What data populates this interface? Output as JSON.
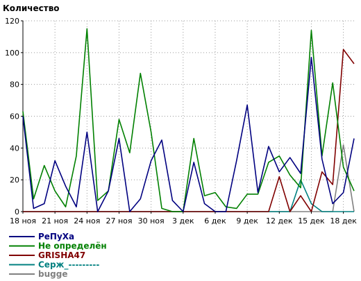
{
  "chart_data": {
    "type": "line",
    "title": "",
    "ylabel": "Количество",
    "xlabel": "",
    "ylim": [
      0,
      120
    ],
    "yticks": [
      0,
      20,
      40,
      60,
      80,
      100,
      120
    ],
    "xlim": [
      0,
      31
    ],
    "xticks": [
      {
        "x": 0,
        "label": "18 ноя"
      },
      {
        "x": 3,
        "label": "21 ноя"
      },
      {
        "x": 6,
        "label": "24 ноя"
      },
      {
        "x": 9,
        "label": "27 ноя"
      },
      {
        "x": 12,
        "label": "30 ноя"
      },
      {
        "x": 15,
        "label": "3 дек"
      },
      {
        "x": 18,
        "label": "6 дек"
      },
      {
        "x": 21,
        "label": "9 дек"
      },
      {
        "x": 24,
        "label": "12 дек"
      },
      {
        "x": 27,
        "label": "15 дек"
      },
      {
        "x": 30,
        "label": "18 дек"
      }
    ],
    "grid": true,
    "legend_position": "bottom-left",
    "series": [
      {
        "name": "РеПуХа",
        "color": "#000080",
        "values": [
          60,
          2,
          5,
          32,
          16,
          3,
          50,
          0,
          13,
          46,
          0,
          8,
          32,
          45,
          7,
          0,
          31,
          5,
          0,
          0,
          32,
          67,
          12,
          41,
          25,
          34,
          24,
          97,
          33,
          5,
          12,
          46
        ]
      },
      {
        "name": "Не определён",
        "color": "#008000",
        "values": [
          63,
          8,
          29,
          13,
          3,
          35,
          115,
          7,
          13,
          58,
          37,
          87,
          50,
          2,
          0,
          0,
          46,
          10,
          12,
          3,
          2,
          11,
          11,
          31,
          35,
          23,
          15,
          114,
          35,
          81,
          28,
          13
        ]
      },
      {
        "name": "GRISHA47",
        "color": "#800000",
        "values": [
          0,
          0,
          0,
          0,
          0,
          0,
          0,
          0,
          0,
          0,
          0,
          0,
          0,
          0,
          0,
          0,
          0,
          0,
          0,
          0,
          0,
          0,
          0,
          0,
          22,
          0,
          10,
          0,
          25,
          17,
          102,
          93
        ]
      },
      {
        "name": "Серж_---------",
        "color": "#008080",
        "values": [
          0,
          0,
          0,
          0,
          0,
          0,
          0,
          0,
          0,
          0,
          0,
          0,
          0,
          0,
          0,
          0,
          0,
          0,
          0,
          0,
          0,
          0,
          0,
          0,
          0,
          0,
          20,
          5,
          0,
          0,
          0,
          0
        ]
      },
      {
        "name": "bugge",
        "color": "#808080",
        "values": [
          0,
          0,
          0,
          0,
          0,
          0,
          0,
          0,
          0,
          0,
          0,
          0,
          0,
          0,
          0,
          0,
          0,
          0,
          0,
          0,
          0,
          0,
          0,
          0,
          0,
          0,
          0,
          0,
          0,
          0,
          42,
          0
        ]
      }
    ]
  }
}
